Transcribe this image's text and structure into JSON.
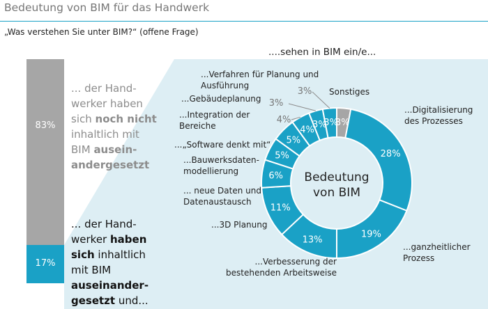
{
  "header": {
    "title": "Bedeutung von BIM für das Handwerk"
  },
  "question": "„Was verstehen Sie unter BIM?“ (offene Frage)",
  "ring_title": "....sehen in BIM ein/e...",
  "center_label_line1": "Bedeutung",
  "center_label_line2": "von BIM",
  "bar": {
    "grey_value": "83%",
    "blue_value": "17%",
    "top_text": {
      "p1": "... der Hand-",
      "p2": "werker haben",
      "p3": "sich ",
      "p4b": "noch nicht",
      "p5": "inhaltlich mit",
      "p6": "BIM ",
      "p7b": "ausein-",
      "p8b": "andergesetzt"
    },
    "bottom_text": {
      "p1": "... der Hand-",
      "p2": "werker ",
      "p2b": "haben",
      "p3b": "sich",
      "p3": " inhaltlich",
      "p4": "mit BIM",
      "p5b": "auseinander-",
      "p6b": "gesetzt",
      "p6": " und..."
    }
  },
  "colors": {
    "accent": "#1aa1c6",
    "grey": "#a6a6a6",
    "panel": "#ddeef4"
  },
  "chart_data": [
    {
      "type": "bar",
      "categories": [
        "... der Handwerker haben sich noch nicht inhaltlich mit BIM auseinandergesetzt",
        "... der Handwerker haben sich inhaltlich mit BIM auseinandergesetzt und..."
      ],
      "values": [
        83,
        17
      ],
      "unit": "%"
    },
    {
      "type": "pie",
      "title": "Bedeutung von BIM",
      "slices": [
        {
          "label": "Sonstiges",
          "value": 3,
          "display": "3%",
          "color": "#a6a6a6"
        },
        {
          "label": "...Digitalisierung des Prozesses",
          "value": 28,
          "display": "28%",
          "color": "#1aa1c6"
        },
        {
          "label": "...ganzheitlicher Prozess",
          "value": 19,
          "display": "19%",
          "color": "#1aa1c6"
        },
        {
          "label": "...Verbesserung der bestehenden Arbeitsweise",
          "value": 13,
          "display": "13%",
          "color": "#1aa1c6"
        },
        {
          "label": "...3D Planung",
          "value": 11,
          "display": "11%",
          "color": "#1aa1c6"
        },
        {
          "label": "... neue Daten und Datenaustausch",
          "value": 6,
          "display": "6%",
          "color": "#1aa1c6"
        },
        {
          "label": "...Bauwerksdatenmodellierung",
          "value": 5,
          "display": "5%",
          "color": "#1aa1c6"
        },
        {
          "label": "...„Software denkt mit“",
          "value": 5,
          "display": "5%",
          "color": "#1aa1c6"
        },
        {
          "label": "...Integration der Bereiche",
          "value": 4,
          "display": "4%",
          "color": "#1aa1c6"
        },
        {
          "label": "...Gebäudeplanung",
          "value": 3,
          "display": "3%",
          "color": "#1aa1c6"
        },
        {
          "label": "...Verfahren für Planung und Ausführung",
          "value": 3,
          "display": "3%",
          "color": "#1aa1c6"
        }
      ],
      "labels": {
        "sonstiges": "Sonstiges",
        "digital_1": "...Digitalisierung",
        "digital_2": "des Prozesses",
        "ganz_1": "...ganzheitlicher",
        "ganz_2": "Prozess",
        "verb_1": "...Verbesserung der",
        "verb_2": "bestehenden Arbeitsweise",
        "planung3d": "...3D Planung",
        "daten_1": "... neue Daten und",
        "daten_2": "Datenaustausch",
        "bau_1": "...Bauwerksdaten-",
        "bau_2": "modellierung",
        "software": "...„Software denkt mit“",
        "integ_1": "...Integration der",
        "integ_2": "Bereiche",
        "gebaeude": "...Gebäudeplanung",
        "verf_1": "...Verfahren für Planung und",
        "verf_2": "Ausführung"
      }
    }
  ]
}
